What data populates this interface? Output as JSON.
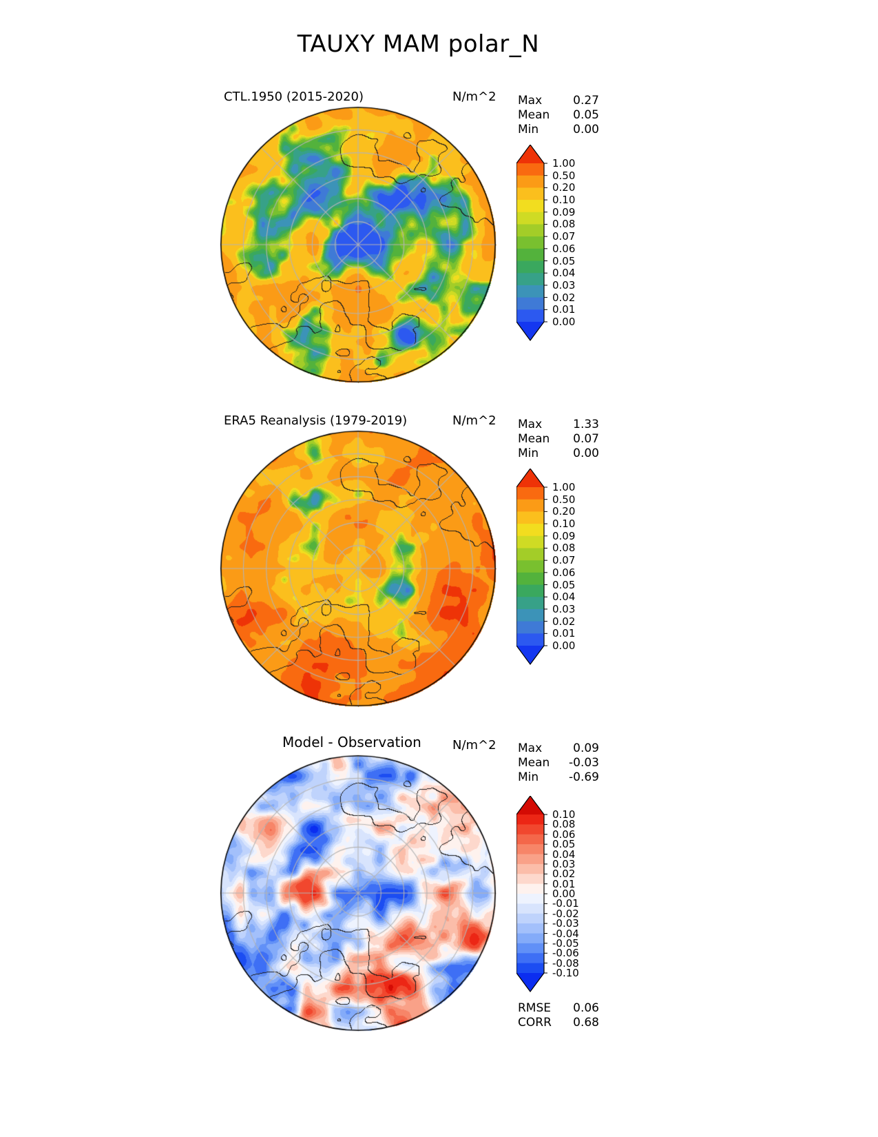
{
  "figure": {
    "title": "TAUXY MAM polar_N"
  },
  "panels": [
    {
      "title": "CTL.1950 (2015-2020)",
      "units": "N/m^2",
      "stats": [
        {
          "label": "Max",
          "value": "0.27"
        },
        {
          "label": "Mean",
          "value": "0.05"
        },
        {
          "label": "Min",
          "value": "0.00"
        }
      ]
    },
    {
      "title": "ERA5 Reanalysis (1979-2019)",
      "units": "N/m^2",
      "stats": [
        {
          "label": "Max",
          "value": "1.33"
        },
        {
          "label": "Mean",
          "value": "0.07"
        },
        {
          "label": "Min",
          "value": "0.00"
        }
      ]
    },
    {
      "title": "Model - Observation",
      "units": "N/m^2",
      "stats": [
        {
          "label": "Max",
          "value": "0.09"
        },
        {
          "label": "Mean",
          "value": "-0.03"
        },
        {
          "label": "Min",
          "value": "-0.69"
        }
      ],
      "extra_stats": [
        {
          "label": "RMSE",
          "value": "0.06"
        },
        {
          "label": "CORR",
          "value": "0.68"
        }
      ]
    }
  ],
  "chart_data": [
    {
      "type": "heatmap",
      "title": "CTL.1950 (2015-2020)",
      "units": "N/m^2",
      "projection": "north_polar_stereographic",
      "gridlines": true,
      "colorbar_orientation": "vertical",
      "stats": {
        "max": 0.27,
        "mean": 0.05,
        "min": 0.0
      },
      "levels": [
        0.0,
        0.01,
        0.02,
        0.03,
        0.04,
        0.05,
        0.06,
        0.07,
        0.08,
        0.09,
        0.1,
        0.2,
        0.5,
        1.0
      ],
      "tick_labels": [
        "1.00",
        "0.50",
        "0.20",
        "0.10",
        "0.09",
        "0.08",
        "0.07",
        "0.06",
        "0.05",
        "0.04",
        "0.03",
        "0.02",
        "0.01",
        "0.00"
      ],
      "colors": [
        "#2c59f0",
        "#3f7ad6",
        "#3c93b8",
        "#37a188",
        "#3aa85e",
        "#53b23c",
        "#79c02f",
        "#a3cd28",
        "#cfdb24",
        "#f2dd1f",
        "#fbbf1d",
        "#fb9b16",
        "#f96a10"
      ],
      "under_color": "#1437f0",
      "over_color": "#ee3307"
    },
    {
      "type": "heatmap",
      "title": "ERA5 Reanalysis (1979-2019)",
      "units": "N/m^2",
      "projection": "north_polar_stereographic",
      "gridlines": true,
      "colorbar_orientation": "vertical",
      "stats": {
        "max": 1.33,
        "mean": 0.07,
        "min": 0.0
      },
      "levels": [
        0.0,
        0.01,
        0.02,
        0.03,
        0.04,
        0.05,
        0.06,
        0.07,
        0.08,
        0.09,
        0.1,
        0.2,
        0.5,
        1.0
      ],
      "tick_labels": [
        "1.00",
        "0.50",
        "0.20",
        "0.10",
        "0.09",
        "0.08",
        "0.07",
        "0.06",
        "0.05",
        "0.04",
        "0.03",
        "0.02",
        "0.01",
        "0.00"
      ],
      "colors": [
        "#2c59f0",
        "#3f7ad6",
        "#3c93b8",
        "#37a188",
        "#3aa85e",
        "#53b23c",
        "#79c02f",
        "#a3cd28",
        "#cfdb24",
        "#f2dd1f",
        "#fbbf1d",
        "#fb9b16",
        "#f96a10"
      ],
      "under_color": "#1437f0",
      "over_color": "#ee3307"
    },
    {
      "type": "heatmap",
      "title": "Model - Observation",
      "units": "N/m^2",
      "projection": "north_polar_stereographic",
      "gridlines": true,
      "colorbar_orientation": "vertical",
      "stats": {
        "max": 0.09,
        "mean": -0.03,
        "min": -0.69,
        "rmse": 0.06,
        "corr": 0.68
      },
      "levels": [
        -0.1,
        -0.08,
        -0.06,
        -0.05,
        -0.04,
        -0.03,
        -0.02,
        -0.01,
        0.0,
        0.01,
        0.02,
        0.03,
        0.04,
        0.05,
        0.06,
        0.08,
        0.1
      ],
      "tick_labels": [
        "0.10",
        "0.08",
        "0.06",
        "0.05",
        "0.04",
        "0.03",
        "0.02",
        "0.01",
        "0.00",
        "-0.01",
        "-0.02",
        "-0.03",
        "-0.04",
        "-0.05",
        "-0.06",
        "-0.08",
        "-0.10"
      ],
      "colors": [
        "#1c4df2",
        "#3e6ff5",
        "#6190f7",
        "#84abf9",
        "#a3c0fb",
        "#bfd3fc",
        "#d8e4fd",
        "#eef3fe",
        "#fef2ee",
        "#fdd8cc",
        "#fbbda9",
        "#f9a188",
        "#f78568",
        "#f4674a",
        "#f1472e",
        "#ec2615"
      ],
      "under_color": "#0b2df0",
      "over_color": "#d40b04"
    }
  ]
}
